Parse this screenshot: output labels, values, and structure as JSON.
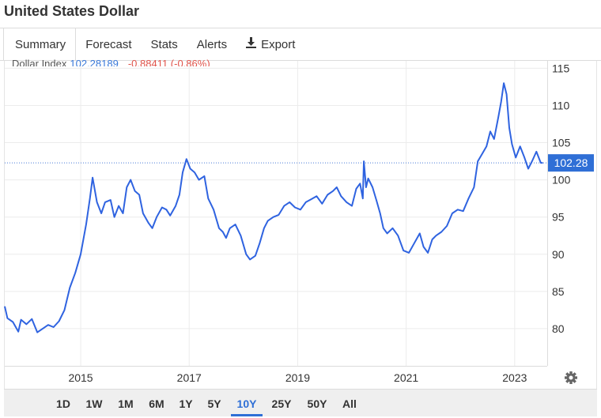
{
  "page": {
    "title": "United States Dollar"
  },
  "tabs": [
    {
      "label": "Summary",
      "active": true
    },
    {
      "label": "Forecast"
    },
    {
      "label": "Stats"
    },
    {
      "label": "Alerts"
    },
    {
      "label": "Export",
      "icon": "download-icon"
    }
  ],
  "legend": {
    "name": "Dollar Index",
    "value": "102.28189",
    "change": "-0.88411 (-0.86%)"
  },
  "colors": {
    "line": "#2f63e0",
    "accent": "#2f6fd6",
    "negative": "#e0544b"
  },
  "range_buttons": [
    {
      "label": "1D"
    },
    {
      "label": "1W"
    },
    {
      "label": "1M"
    },
    {
      "label": "6M"
    },
    {
      "label": "1Y"
    },
    {
      "label": "5Y"
    },
    {
      "label": "10Y",
      "active": true
    },
    {
      "label": "25Y"
    },
    {
      "label": "50Y"
    },
    {
      "label": "All"
    }
  ],
  "settings_icon": "gear-icon",
  "chart_data": {
    "type": "line",
    "x_ticks": [
      "2015",
      "2017",
      "2019",
      "2021",
      "2023"
    ],
    "y_ticks": [
      80,
      85,
      90,
      95,
      100,
      105,
      110,
      115
    ],
    "ylim": [
      75,
      116
    ],
    "xlim": [
      2013.6,
      2023.6
    ],
    "grid": true,
    "last_value_label": "102.28",
    "last_value": 102.28,
    "series": [
      {
        "values": [
          [
            2013.6,
            83.0
          ],
          [
            2013.65,
            81.4
          ],
          [
            2013.75,
            80.9
          ],
          [
            2013.85,
            79.6
          ],
          [
            2013.9,
            81.2
          ],
          [
            2014.0,
            80.6
          ],
          [
            2014.1,
            81.3
          ],
          [
            2014.2,
            79.5
          ],
          [
            2014.3,
            80.0
          ],
          [
            2014.4,
            80.5
          ],
          [
            2014.5,
            80.2
          ],
          [
            2014.6,
            81.0
          ],
          [
            2014.7,
            82.5
          ],
          [
            2014.8,
            85.5
          ],
          [
            2014.9,
            87.5
          ],
          [
            2015.0,
            90.0
          ],
          [
            2015.1,
            94.0
          ],
          [
            2015.17,
            97.5
          ],
          [
            2015.22,
            100.3
          ],
          [
            2015.3,
            97.0
          ],
          [
            2015.38,
            95.5
          ],
          [
            2015.45,
            97.0
          ],
          [
            2015.55,
            97.3
          ],
          [
            2015.62,
            95.0
          ],
          [
            2015.7,
            96.5
          ],
          [
            2015.78,
            95.5
          ],
          [
            2015.85,
            99.0
          ],
          [
            2015.92,
            100.0
          ],
          [
            2016.0,
            98.5
          ],
          [
            2016.08,
            98.0
          ],
          [
            2016.15,
            95.5
          ],
          [
            2016.25,
            94.2
          ],
          [
            2016.32,
            93.5
          ],
          [
            2016.4,
            95.0
          ],
          [
            2016.5,
            96.3
          ],
          [
            2016.58,
            96.0
          ],
          [
            2016.65,
            95.2
          ],
          [
            2016.75,
            96.5
          ],
          [
            2016.82,
            98.0
          ],
          [
            2016.88,
            101.0
          ],
          [
            2016.95,
            102.8
          ],
          [
            2017.02,
            101.5
          ],
          [
            2017.1,
            101.0
          ],
          [
            2017.18,
            100.0
          ],
          [
            2017.28,
            100.5
          ],
          [
            2017.35,
            97.5
          ],
          [
            2017.45,
            96.0
          ],
          [
            2017.55,
            93.5
          ],
          [
            2017.62,
            93.0
          ],
          [
            2017.68,
            92.2
          ],
          [
            2017.75,
            93.5
          ],
          [
            2017.85,
            94.0
          ],
          [
            2017.95,
            92.5
          ],
          [
            2018.05,
            90.0
          ],
          [
            2018.12,
            89.3
          ],
          [
            2018.22,
            89.8
          ],
          [
            2018.3,
            91.5
          ],
          [
            2018.38,
            93.5
          ],
          [
            2018.45,
            94.5
          ],
          [
            2018.55,
            95.0
          ],
          [
            2018.65,
            95.3
          ],
          [
            2018.75,
            96.5
          ],
          [
            2018.85,
            97.0
          ],
          [
            2018.95,
            96.3
          ],
          [
            2019.05,
            96.0
          ],
          [
            2019.15,
            97.0
          ],
          [
            2019.25,
            97.4
          ],
          [
            2019.35,
            97.8
          ],
          [
            2019.45,
            96.8
          ],
          [
            2019.55,
            98.0
          ],
          [
            2019.65,
            98.5
          ],
          [
            2019.72,
            99.0
          ],
          [
            2019.8,
            97.8
          ],
          [
            2019.9,
            97.0
          ],
          [
            2020.0,
            96.5
          ],
          [
            2020.08,
            98.8
          ],
          [
            2020.15,
            99.5
          ],
          [
            2020.2,
            97.5
          ],
          [
            2020.22,
            102.5
          ],
          [
            2020.26,
            99.0
          ],
          [
            2020.3,
            100.2
          ],
          [
            2020.38,
            99.0
          ],
          [
            2020.45,
            97.3
          ],
          [
            2020.52,
            95.5
          ],
          [
            2020.58,
            93.5
          ],
          [
            2020.65,
            92.8
          ],
          [
            2020.75,
            93.5
          ],
          [
            2020.85,
            92.5
          ],
          [
            2020.95,
            90.5
          ],
          [
            2021.05,
            90.2
          ],
          [
            2021.15,
            91.5
          ],
          [
            2021.25,
            92.8
          ],
          [
            2021.32,
            91.0
          ],
          [
            2021.4,
            90.2
          ],
          [
            2021.48,
            92.0
          ],
          [
            2021.55,
            92.5
          ],
          [
            2021.65,
            93.0
          ],
          [
            2021.75,
            93.8
          ],
          [
            2021.85,
            95.5
          ],
          [
            2021.95,
            96.0
          ],
          [
            2022.05,
            95.8
          ],
          [
            2022.15,
            97.5
          ],
          [
            2022.25,
            99.0
          ],
          [
            2022.32,
            102.5
          ],
          [
            2022.4,
            103.5
          ],
          [
            2022.48,
            104.5
          ],
          [
            2022.55,
            106.5
          ],
          [
            2022.62,
            105.5
          ],
          [
            2022.7,
            108.5
          ],
          [
            2022.75,
            110.5
          ],
          [
            2022.8,
            113.0
          ],
          [
            2022.85,
            111.5
          ],
          [
            2022.9,
            107.0
          ],
          [
            2022.95,
            104.8
          ],
          [
            2023.02,
            103.0
          ],
          [
            2023.1,
            104.5
          ],
          [
            2023.18,
            103.0
          ],
          [
            2023.25,
            101.5
          ],
          [
            2023.32,
            102.5
          ],
          [
            2023.4,
            103.8
          ],
          [
            2023.48,
            102.3
          ],
          [
            2023.52,
            102.28
          ]
        ]
      }
    ]
  }
}
